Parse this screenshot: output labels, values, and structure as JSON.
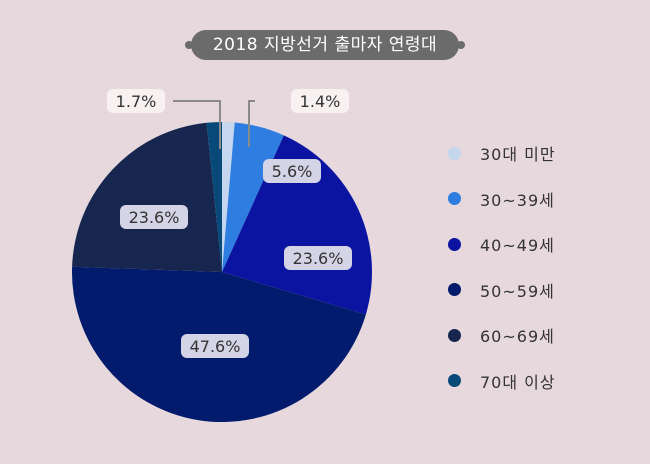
{
  "chart_data": {
    "type": "pie",
    "title": "2018 지방선거 출마자 연령대",
    "categories": [
      "30대 미만",
      "30~39세",
      "40~49세",
      "50~59세",
      "60~69세",
      "70대 이상"
    ],
    "values": [
      1.4,
      5.6,
      23.6,
      47.6,
      23.6,
      1.7
    ],
    "labels": [
      "1.4%",
      "5.6%",
      "23.6%",
      "47.6%",
      "23.6%",
      "1.7%"
    ],
    "colors": [
      "#c5d6ef",
      "#2e7de0",
      "#0a14a0",
      "#031b6c",
      "#16264f",
      "#074a79"
    ],
    "legend_position": "right"
  }
}
